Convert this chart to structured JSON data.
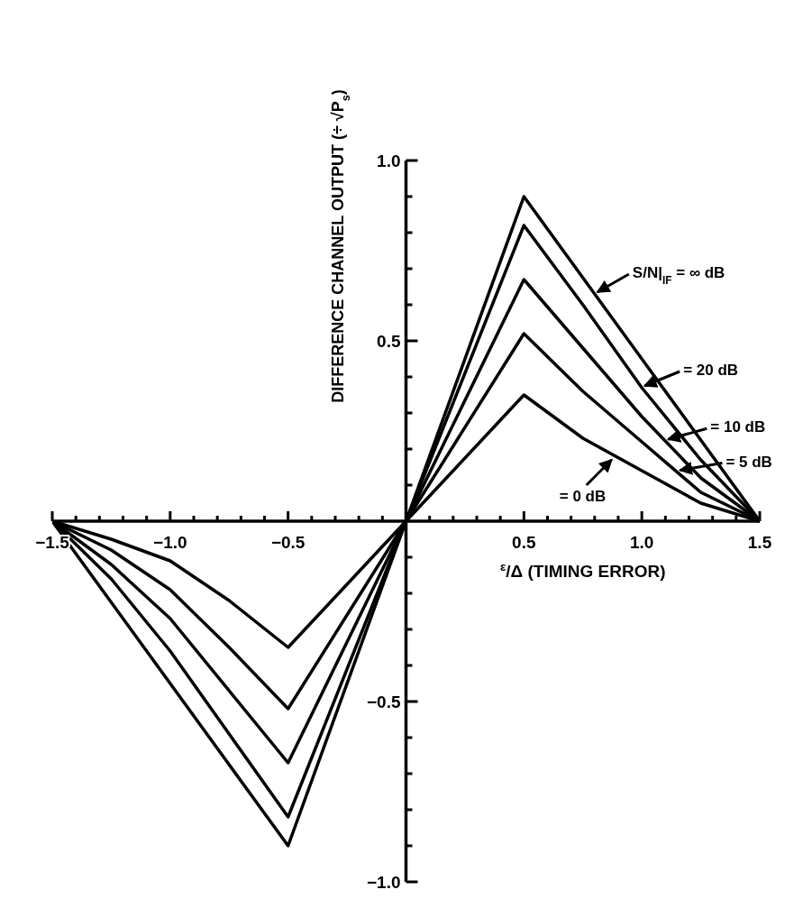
{
  "chart_data": {
    "type": "line",
    "xlabel": "$^{ε}$/Δ (TIMING ERROR)",
    "ylabel": "DIFFERENCE CHANNEL OUTPUT (÷ √P$_{s}$)",
    "x": [
      -1.5,
      -1.25,
      -1.0,
      -0.75,
      -0.5,
      0,
      0.5,
      0.75,
      1.0,
      1.25,
      1.5
    ],
    "series": [
      {
        "name": "S/N|$_{IF}$ = ∞ dB",
        "color": "#000000",
        "values": [
          0,
          -0.225,
          -0.45,
          -0.675,
          -0.9,
          0,
          0.9,
          0.675,
          0.45,
          0.225,
          0
        ]
      },
      {
        "name": "= 20 dB",
        "color": "#000000",
        "values": [
          0,
          -0.16,
          -0.36,
          -0.59,
          -0.82,
          0,
          0.82,
          0.6,
          0.37,
          0.17,
          0
        ]
      },
      {
        "name": "= 10 dB",
        "color": "#000000",
        "values": [
          0,
          -0.12,
          -0.27,
          -0.47,
          -0.67,
          0,
          0.67,
          0.48,
          0.29,
          0.12,
          0
        ]
      },
      {
        "name": "= 5 dB",
        "color": "#000000",
        "values": [
          0,
          -0.08,
          -0.19,
          -0.35,
          -0.52,
          0,
          0.52,
          0.36,
          0.22,
          0.08,
          0
        ]
      },
      {
        "name": "= 0 dB",
        "color": "#000000",
        "values": [
          0,
          -0.05,
          -0.11,
          -0.22,
          -0.35,
          0,
          0.35,
          0.23,
          0.14,
          0.05,
          0
        ]
      }
    ],
    "xlim": [
      -1.5,
      1.5
    ],
    "ylim": [
      -1.0,
      1.0
    ],
    "xticks": [
      {
        "value": -1.5,
        "label": "−1.5"
      },
      {
        "value": -1.4,
        "label": null
      },
      {
        "value": -1.3,
        "label": null
      },
      {
        "value": -1.2,
        "label": null
      },
      {
        "value": -1.1,
        "label": null
      },
      {
        "value": -1.0,
        "label": "−1.0"
      },
      {
        "value": -0.9,
        "label": null
      },
      {
        "value": -0.8,
        "label": null
      },
      {
        "value": -0.7,
        "label": null
      },
      {
        "value": -0.6,
        "label": null
      },
      {
        "value": -0.5,
        "label": "−0.5"
      },
      {
        "value": -0.4,
        "label": null
      },
      {
        "value": -0.3,
        "label": null
      },
      {
        "value": -0.2,
        "label": null
      },
      {
        "value": -0.1,
        "label": null
      },
      {
        "value": 0.1,
        "label": null
      },
      {
        "value": 0.2,
        "label": null
      },
      {
        "value": 0.3,
        "label": null
      },
      {
        "value": 0.4,
        "label": null
      },
      {
        "value": 0.5,
        "label": "0.5"
      },
      {
        "value": 0.6,
        "label": null
      },
      {
        "value": 0.7,
        "label": null
      },
      {
        "value": 0.8,
        "label": null
      },
      {
        "value": 0.9,
        "label": null
      },
      {
        "value": 1.0,
        "label": "1.0"
      },
      {
        "value": 1.1,
        "label": null
      },
      {
        "value": 1.2,
        "label": null
      },
      {
        "value": 1.3,
        "label": null
      },
      {
        "value": 1.4,
        "label": null
      },
      {
        "value": 1.5,
        "label": "1.5"
      }
    ],
    "yticks": [
      {
        "value": -1.0,
        "label": "−1.0"
      },
      {
        "value": -0.9,
        "label": null
      },
      {
        "value": -0.8,
        "label": null
      },
      {
        "value": -0.7,
        "label": null
      },
      {
        "value": -0.6,
        "label": null
      },
      {
        "value": -0.5,
        "label": "−0.5"
      },
      {
        "value": -0.4,
        "label": null
      },
      {
        "value": -0.3,
        "label": null
      },
      {
        "value": -0.2,
        "label": null
      },
      {
        "value": -0.1,
        "label": null
      },
      {
        "value": 0.1,
        "label": null
      },
      {
        "value": 0.2,
        "label": null
      },
      {
        "value": 0.3,
        "label": null
      },
      {
        "value": 0.4,
        "label": null
      },
      {
        "value": 0.5,
        "label": "0.5"
      },
      {
        "value": 0.6,
        "label": null
      },
      {
        "value": 0.7,
        "label": null
      },
      {
        "value": 0.8,
        "label": null
      },
      {
        "value": 0.9,
        "label": null
      },
      {
        "value": 1.0,
        "label": "1.0"
      }
    ],
    "legend": "right",
    "marker": "none",
    "line_style": "solid"
  }
}
